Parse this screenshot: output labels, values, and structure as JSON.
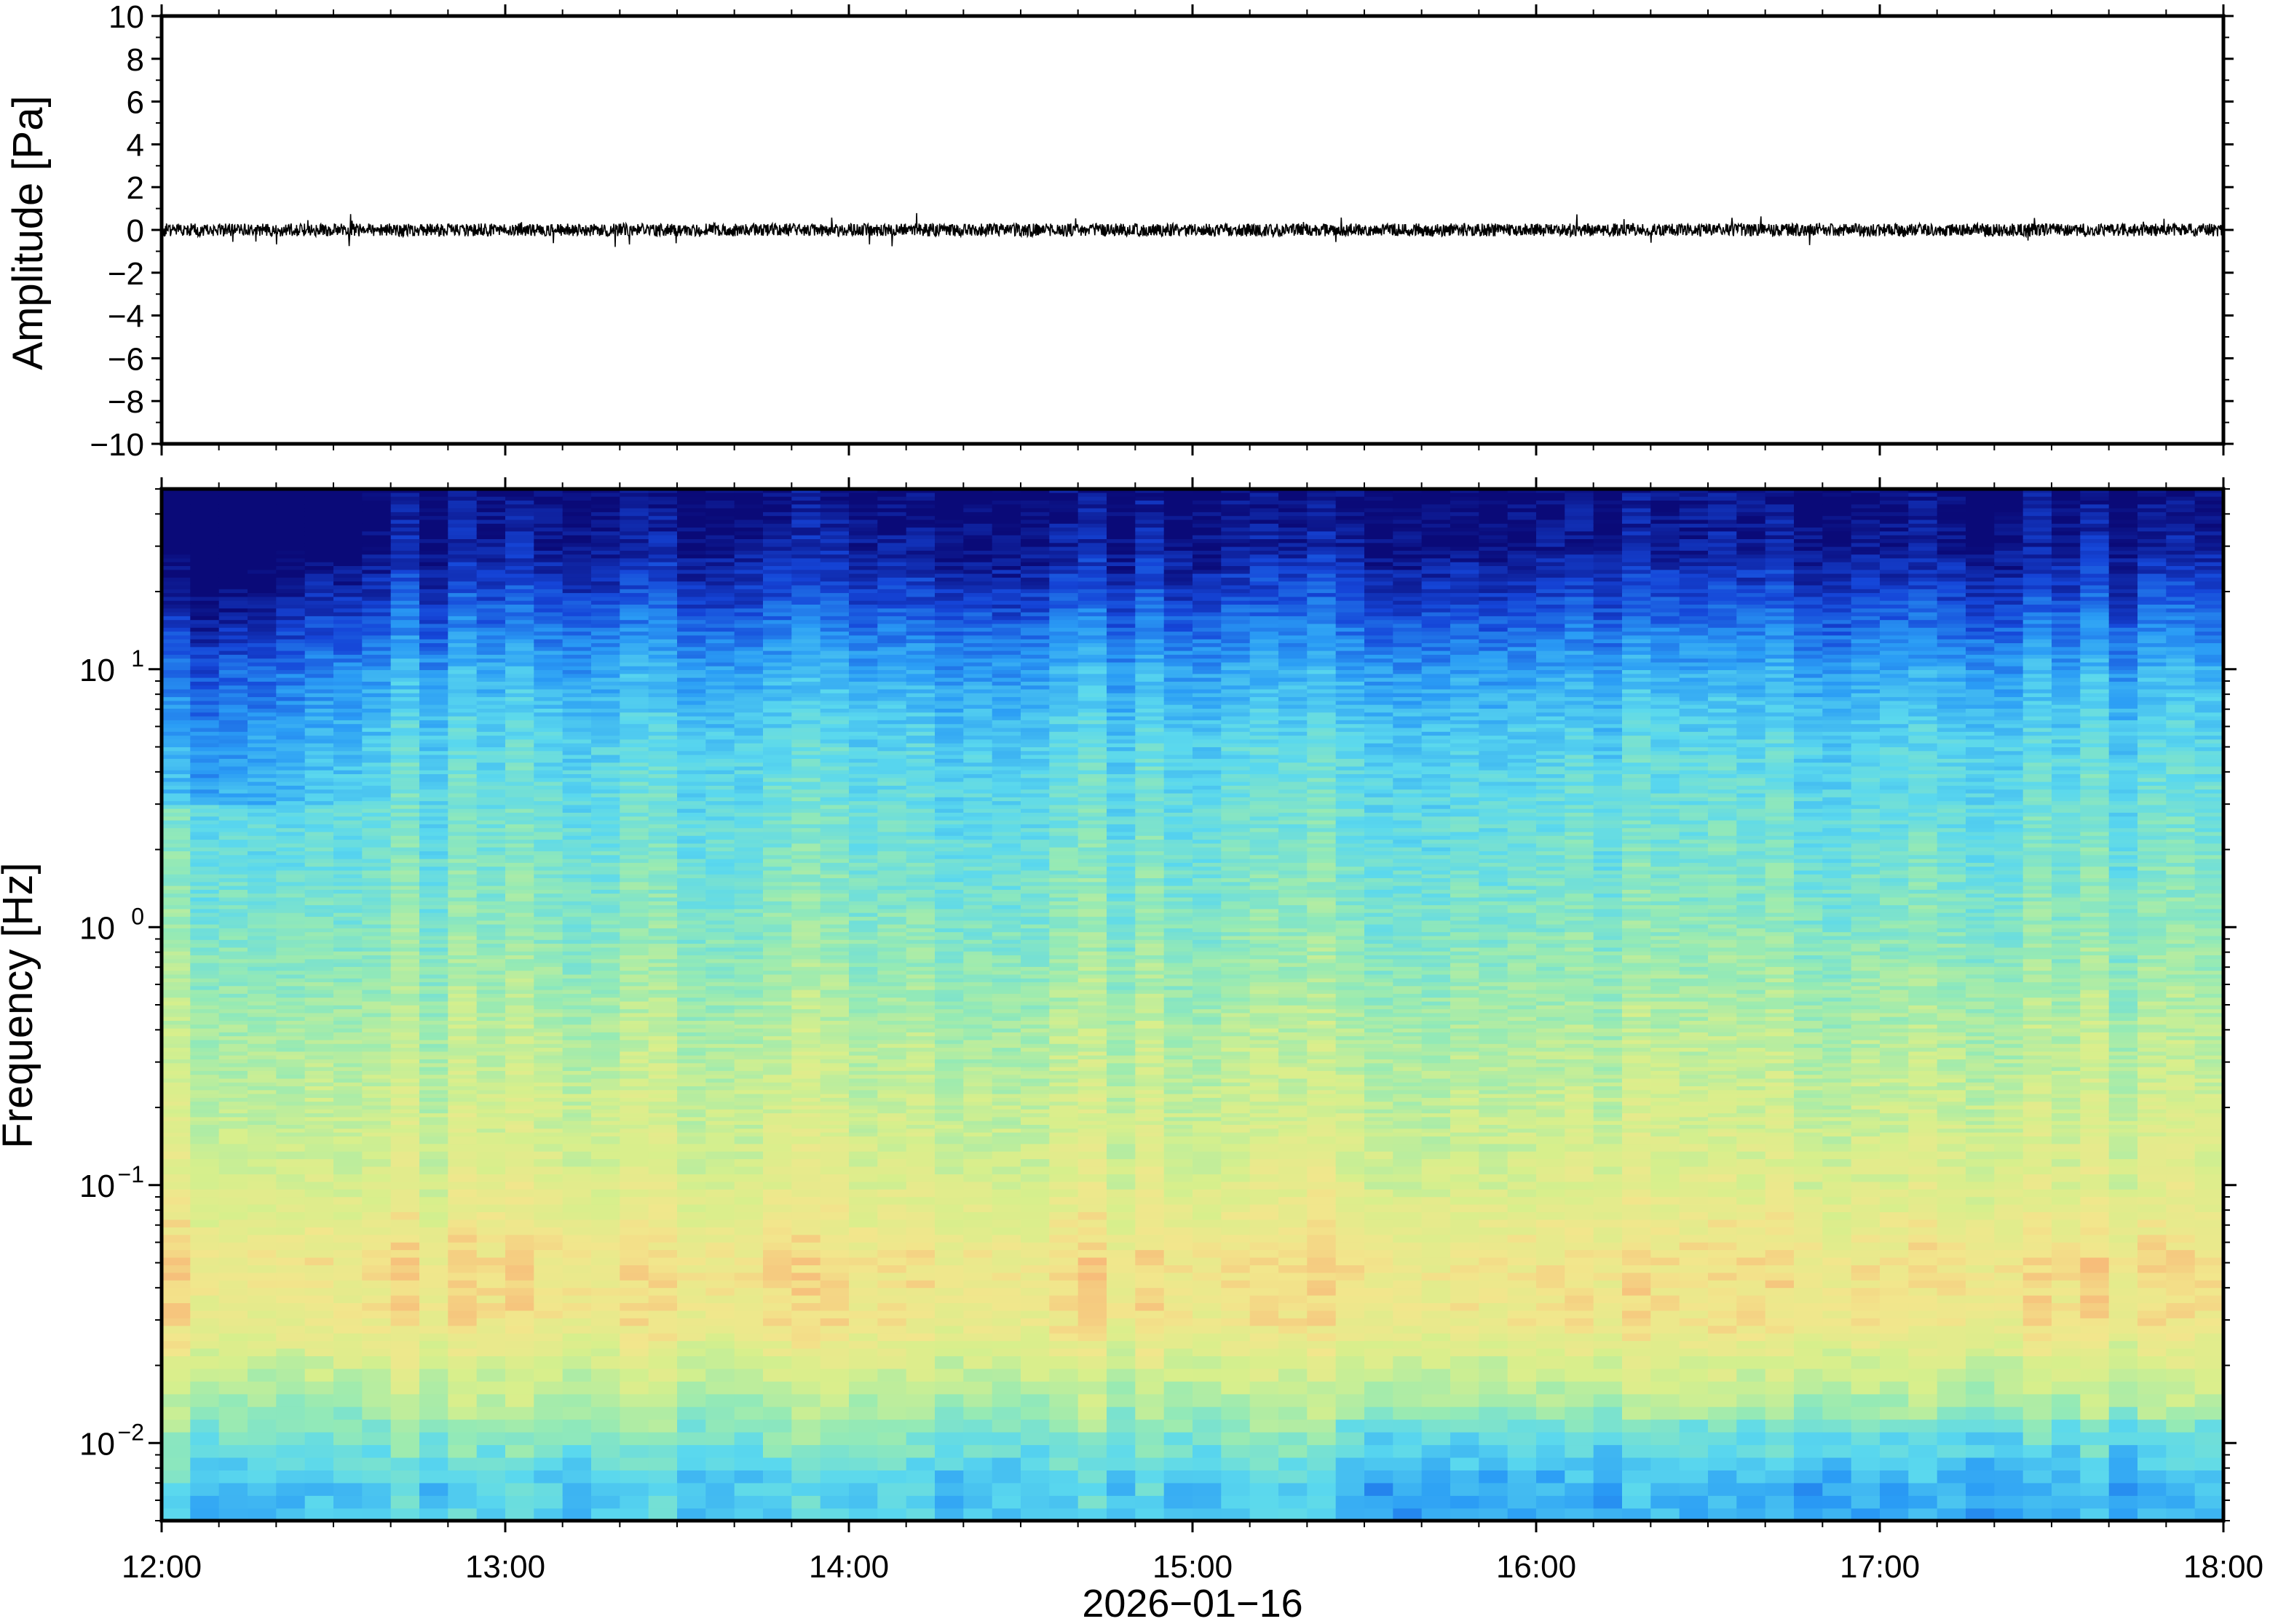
{
  "chart_data": [
    {
      "type": "line",
      "panel": "waveform",
      "ylabel": "Amplitude [Pa]",
      "ylim": [
        -10,
        10
      ],
      "y_ticks": [
        "10",
        "8",
        "6",
        "4",
        "2",
        "0",
        "−2",
        "−4",
        "−6",
        "−8",
        "−10"
      ],
      "y_tick_values": [
        10,
        8,
        6,
        4,
        2,
        0,
        -2,
        -4,
        -6,
        -8,
        -10
      ],
      "x_range": [
        "12:00",
        "18:00"
      ],
      "baseline": 0,
      "typical_amplitude": 0.3,
      "max_amplitude": 0.8,
      "line_color": "#000000",
      "grid": false
    },
    {
      "type": "heatmap",
      "panel": "spectrogram",
      "ylabel": "Frequency [Hz]",
      "y_scale": "log",
      "ylim": [
        0.005,
        50
      ],
      "y_ticks": [
        {
          "base": "10",
          "exp": "1",
          "value": 10
        },
        {
          "base": "10",
          "exp": "0",
          "value": 1
        },
        {
          "base": "10",
          "exp": "−1",
          "value": 0.1
        },
        {
          "base": "10",
          "exp": "−2",
          "value": 0.01
        }
      ],
      "xlabel": "2026−01−16",
      "x_ticks": [
        "12:00",
        "13:00",
        "14:00",
        "15:00",
        "16:00",
        "17:00",
        "18:00"
      ],
      "x_range": [
        "12:00",
        "18:00"
      ],
      "colormap": "jet",
      "colormap_stops": [
        "#0a0a78",
        "#1545d8",
        "#2a9cf5",
        "#5ad8ee",
        "#96eab4",
        "#d7ef8c",
        "#f2e68c",
        "#f8b074",
        "#f47e3c"
      ],
      "approx_level_by_frequency": [
        {
          "hz": 50,
          "level": 0.0
        },
        {
          "hz": 30,
          "level": 0.04
        },
        {
          "hz": 20,
          "level": 0.12
        },
        {
          "hz": 10,
          "level": 0.28
        },
        {
          "hz": 5,
          "level": 0.38
        },
        {
          "hz": 1,
          "level": 0.48
        },
        {
          "hz": 0.3,
          "level": 0.58
        },
        {
          "hz": 0.1,
          "level": 0.66
        },
        {
          "hz": 0.05,
          "level": 0.76
        },
        {
          "hz": 0.03,
          "level": 0.74
        },
        {
          "hz": 0.015,
          "level": 0.56
        },
        {
          "hz": 0.007,
          "level": 0.36
        }
      ],
      "grid": false
    }
  ]
}
